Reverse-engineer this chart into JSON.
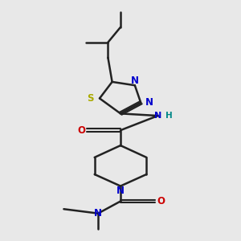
{
  "background_color": "#e8e8e8",
  "figsize": [
    3.0,
    3.0
  ],
  "dpi": 100,
  "bond_color": "#222222",
  "atom_colors": {
    "S": "#aaaa00",
    "N": "#0000cc",
    "O": "#cc0000",
    "H": "#008888"
  },
  "font_size": 8.5,
  "xlim": [
    0.1,
    0.9
  ],
  "ylim": [
    -0.08,
    1.02
  ]
}
